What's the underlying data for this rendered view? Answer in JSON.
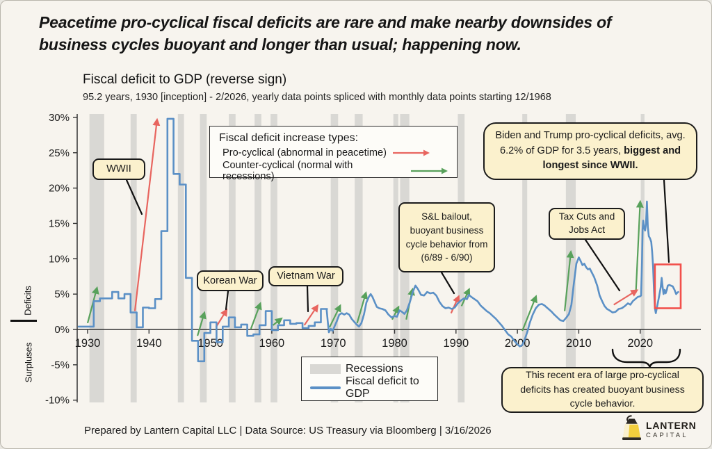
{
  "header": {
    "title": "Peacetime pro-cyclical fiscal deficits are rare and make nearby downsides of business cycles buoyant and longer than usual; happening now."
  },
  "chart": {
    "title": "Fiscal deficit to GDP (reverse sign)",
    "subtitle": "95.2 years, 1930 [inception] - 2/2026, yearly data points spliced with monthly data points starting 12/1968"
  },
  "types_legend": {
    "title": "Fiscal deficit increase types:",
    "items": [
      {
        "label": "Pro-cyclical (abnormal in peacetime)",
        "type": "pro"
      },
      {
        "label": "Counter-cyclical (normal with recessions)",
        "type": "counter"
      }
    ]
  },
  "callouts": {
    "wwii": "WWII",
    "korean": "Korean War",
    "vietnam": "Vietnam War",
    "snl": "S&L bailout, buoyant business cycle behavior from (6/89 - 6/90)",
    "taxcuts": "Tax Cuts and Jobs Act",
    "biden_trump_text": "Biden and Trump pro-cyclical deficits, avg. 6.2% of GDP for 3.5 years, ",
    "biden_trump_bold": "biggest and longest since WWII.",
    "recent_era": "This recent era of large pro-cyclical deficits has created buoyant business cycle behavior."
  },
  "axis_labels": {
    "deficits": "Deficits",
    "surpluses": "Surpluses"
  },
  "legend": {
    "recessions": "Recessions",
    "line": "Fiscal deficit to GDP"
  },
  "footer": {
    "text": "Prepared by Lantern Capital LLC | Data Source: US Treasury via Bloomberg | 3/16/2026"
  },
  "logo": {
    "name": "LANTERN",
    "sub": "CAPITAL"
  },
  "colors": {
    "background": "#f7f4ee",
    "line": "#5b90c6",
    "recession": "#d9d8d4",
    "pro": "#e8655f",
    "counter": "#58a15b",
    "callout_bg": "#fbf1cd",
    "highlight_box": "#f2504b",
    "text": "#1a1a1a"
  },
  "chart_data": {
    "type": "line",
    "title": "Fiscal deficit to GDP (reverse sign)",
    "xlabel": "",
    "ylabel": "Deficits / Surpluses (% of GDP, reverse sign)",
    "xlim": [
      1928.3,
      2029.5
    ],
    "ylim": [
      -10.5,
      30.5
    ],
    "grid": false,
    "y_ticks": [
      30,
      25,
      20,
      15,
      10,
      5,
      0,
      -5,
      -10
    ],
    "y_tick_suffix": "%",
    "x_ticks": [
      1930,
      1940,
      1950,
      1960,
      1970,
      1980,
      1990,
      2000,
      2010,
      2020
    ],
    "series": [
      {
        "name": "Fiscal deficit to GDP",
        "yearly_step": [
          [
            1930,
            0.4
          ],
          [
            1931,
            4.0
          ],
          [
            1932,
            4.4
          ],
          [
            1933,
            4.4
          ],
          [
            1934,
            5.3
          ],
          [
            1935,
            4.4
          ],
          [
            1936,
            5.0
          ],
          [
            1937,
            2.4
          ],
          [
            1938,
            0.3
          ],
          [
            1939,
            3.1
          ],
          [
            1940,
            3.0
          ],
          [
            1941,
            4.3
          ],
          [
            1942,
            13.9
          ],
          [
            1943,
            29.8
          ],
          [
            1944,
            22.0
          ],
          [
            1945,
            20.5
          ],
          [
            1946,
            7.3
          ],
          [
            1947,
            -1.6
          ],
          [
            1948,
            -4.5
          ],
          [
            1949,
            -0.5
          ],
          [
            1950,
            1.0
          ],
          [
            1951,
            -1.8
          ],
          [
            1952,
            0.4
          ],
          [
            1953,
            1.7
          ],
          [
            1954,
            0.3
          ],
          [
            1955,
            0.7
          ],
          [
            1956,
            -0.9
          ],
          [
            1957,
            -0.7
          ],
          [
            1958,
            0.6
          ],
          [
            1959,
            2.6
          ],
          [
            1960,
            -0.1
          ],
          [
            1961,
            0.6
          ],
          [
            1962,
            1.3
          ],
          [
            1963,
            0.8
          ],
          [
            1964,
            0.9
          ],
          [
            1965,
            0.2
          ],
          [
            1966,
            0.5
          ],
          [
            1967,
            1.0
          ],
          [
            1968,
            2.9
          ]
        ],
        "monthly": [
          [
            1968.92,
            2.9
          ],
          [
            1969.1,
            1.2
          ],
          [
            1969.3,
            -0.4
          ],
          [
            1969.6,
            0.1
          ],
          [
            1969.9,
            -0.2
          ],
          [
            1970.2,
            0.4
          ],
          [
            1970.6,
            1.2
          ],
          [
            1971.0,
            2.1
          ],
          [
            1971.4,
            2.3
          ],
          [
            1971.8,
            2.1
          ],
          [
            1972.2,
            2.3
          ],
          [
            1972.6,
            2.1
          ],
          [
            1973.0,
            1.5
          ],
          [
            1973.4,
            1.1
          ],
          [
            1973.8,
            0.7
          ],
          [
            1974.2,
            0.4
          ],
          [
            1974.6,
            0.9
          ],
          [
            1975.0,
            2.1
          ],
          [
            1975.4,
            3.8
          ],
          [
            1975.8,
            4.6
          ],
          [
            1976.1,
            5.0
          ],
          [
            1976.4,
            4.6
          ],
          [
            1976.8,
            3.8
          ],
          [
            1977.1,
            3.2
          ],
          [
            1977.5,
            3.0
          ],
          [
            1978.0,
            2.9
          ],
          [
            1978.5,
            2.7
          ],
          [
            1979.0,
            2.1
          ],
          [
            1979.5,
            1.7
          ],
          [
            1980.0,
            1.9
          ],
          [
            1980.4,
            1.8
          ],
          [
            1980.8,
            2.7
          ],
          [
            1981.2,
            2.5
          ],
          [
            1981.6,
            2.2
          ],
          [
            1982.0,
            2.7
          ],
          [
            1982.5,
            3.9
          ],
          [
            1983.0,
            5.4
          ],
          [
            1983.4,
            6.2
          ],
          [
            1983.8,
            5.7
          ],
          [
            1984.3,
            4.9
          ],
          [
            1984.8,
            4.8
          ],
          [
            1985.3,
            5.3
          ],
          [
            1985.8,
            5.1
          ],
          [
            1986.3,
            5.2
          ],
          [
            1986.8,
            4.8
          ],
          [
            1987.3,
            3.9
          ],
          [
            1987.8,
            3.3
          ],
          [
            1988.3,
            3.0
          ],
          [
            1988.8,
            3.1
          ],
          [
            1989.3,
            2.9
          ],
          [
            1989.8,
            3.1
          ],
          [
            1990.3,
            3.7
          ],
          [
            1990.8,
            4.1
          ],
          [
            1991.3,
            4.4
          ],
          [
            1991.8,
            4.3
          ],
          [
            1992.1,
            4.9
          ],
          [
            1992.5,
            4.6
          ],
          [
            1993.0,
            4.3
          ],
          [
            1993.5,
            4.0
          ],
          [
            1994.0,
            3.4
          ],
          [
            1994.5,
            3.0
          ],
          [
            1995.0,
            2.6
          ],
          [
            1995.5,
            2.3
          ],
          [
            1996.0,
            1.9
          ],
          [
            1996.5,
            1.5
          ],
          [
            1997.0,
            1.0
          ],
          [
            1997.5,
            0.5
          ],
          [
            1998.0,
            -0.1
          ],
          [
            1998.5,
            -0.7
          ],
          [
            1999.0,
            -1.0
          ],
          [
            1999.5,
            -1.6
          ],
          [
            2000.0,
            -2.1
          ],
          [
            2000.4,
            -2.4
          ],
          [
            2000.8,
            -2.2
          ],
          [
            2001.2,
            -1.4
          ],
          [
            2001.6,
            -0.4
          ],
          [
            2002.0,
            0.9
          ],
          [
            2002.5,
            2.1
          ],
          [
            2003.0,
            3.0
          ],
          [
            2003.5,
            3.5
          ],
          [
            2004.0,
            3.6
          ],
          [
            2004.4,
            3.4
          ],
          [
            2004.8,
            3.1
          ],
          [
            2005.2,
            2.8
          ],
          [
            2005.6,
            2.5
          ],
          [
            2006.0,
            2.1
          ],
          [
            2006.5,
            1.7
          ],
          [
            2007.0,
            1.3
          ],
          [
            2007.5,
            1.2
          ],
          [
            2008.0,
            1.7
          ],
          [
            2008.4,
            2.2
          ],
          [
            2008.8,
            3.5
          ],
          [
            2009.2,
            6.5
          ],
          [
            2009.6,
            9.3
          ],
          [
            2010.0,
            10.2
          ],
          [
            2010.3,
            9.7
          ],
          [
            2010.6,
            9.1
          ],
          [
            2010.9,
            9.3
          ],
          [
            2011.2,
            8.8
          ],
          [
            2011.5,
            8.5
          ],
          [
            2011.8,
            8.6
          ],
          [
            2012.1,
            8.1
          ],
          [
            2012.5,
            7.4
          ],
          [
            2013.0,
            6.2
          ],
          [
            2013.4,
            4.8
          ],
          [
            2013.8,
            4.0
          ],
          [
            2014.2,
            3.3
          ],
          [
            2014.6,
            2.9
          ],
          [
            2015.0,
            2.7
          ],
          [
            2015.5,
            2.4
          ],
          [
            2016.0,
            2.5
          ],
          [
            2016.5,
            2.9
          ],
          [
            2017.0,
            3.0
          ],
          [
            2017.5,
            3.3
          ],
          [
            2018.0,
            3.7
          ],
          [
            2018.4,
            3.5
          ],
          [
            2018.8,
            4.0
          ],
          [
            2019.2,
            4.3
          ],
          [
            2019.6,
            4.6
          ],
          [
            2020.0,
            4.7
          ],
          [
            2020.15,
            4.8
          ],
          [
            2020.3,
            9.5
          ],
          [
            2020.4,
            14.2
          ],
          [
            2020.5,
            15.4
          ],
          [
            2020.65,
            14.3
          ],
          [
            2020.8,
            14.0
          ],
          [
            2020.95,
            15.0
          ],
          [
            2021.1,
            18.1
          ],
          [
            2021.25,
            14.5
          ],
          [
            2021.4,
            13.2
          ],
          [
            2021.6,
            12.9
          ],
          [
            2021.8,
            12.4
          ],
          [
            2021.95,
            11.0
          ],
          [
            2022.1,
            9.0
          ],
          [
            2022.25,
            5.5
          ],
          [
            2022.4,
            3.0
          ],
          [
            2022.55,
            2.3
          ],
          [
            2022.8,
            3.4
          ],
          [
            2023.1,
            4.8
          ],
          [
            2023.35,
            6.0
          ],
          [
            2023.5,
            7.3
          ],
          [
            2023.65,
            6.1
          ],
          [
            2023.8,
            5.0
          ],
          [
            2024.0,
            5.6
          ],
          [
            2024.15,
            5.1
          ],
          [
            2024.35,
            5.6
          ],
          [
            2024.5,
            6.2
          ],
          [
            2024.75,
            6.3
          ],
          [
            2025.0,
            6.2
          ],
          [
            2025.3,
            6.1
          ],
          [
            2025.6,
            5.6
          ],
          [
            2025.85,
            5.0
          ],
          [
            2026.05,
            5.2
          ],
          [
            2026.2,
            5.3
          ]
        ]
      }
    ],
    "recessions": [
      [
        1930.3,
        1932.7
      ],
      [
        1937.0,
        1938.0
      ],
      [
        1944.7,
        1945.7
      ],
      [
        1948.3,
        1949.4
      ],
      [
        1953.0,
        1954.1
      ],
      [
        1957.2,
        1958.3
      ],
      [
        1959.8,
        1960.9
      ],
      [
        1969.6,
        1970.8
      ],
      [
        1973.5,
        1974.8
      ],
      [
        1979.8,
        1980.6
      ],
      [
        1980.9,
        1982.4
      ],
      [
        1990.3,
        1991.4
      ],
      [
        2000.8,
        2001.6
      ],
      [
        2007.9,
        2009.5
      ],
      [
        2020.1,
        2020.7
      ]
    ],
    "arrows": [
      {
        "type": "counter",
        "from": [
          1930.0,
          0.9
        ],
        "to": [
          1931.5,
          5.8
        ]
      },
      {
        "type": "counter",
        "from": [
          1947.9,
          -0.9
        ],
        "to": [
          1949.0,
          2.3
        ]
      },
      {
        "type": "counter",
        "from": [
          1956.6,
          0.1
        ],
        "to": [
          1958.1,
          3.6
        ]
      },
      {
        "type": "counter",
        "from": [
          1960.2,
          0.6
        ],
        "to": [
          1961.5,
          1.5
        ]
      },
      {
        "type": "counter",
        "from": [
          1969.4,
          0.3
        ],
        "to": [
          1971.1,
          3.3
        ]
      },
      {
        "type": "counter",
        "from": [
          1973.9,
          0.9
        ],
        "to": [
          1975.3,
          5.1
        ]
      },
      {
        "type": "counter",
        "from": [
          1979.6,
          1.4
        ],
        "to": [
          1980.6,
          3.1
        ]
      },
      {
        "type": "counter",
        "from": [
          1981.9,
          1.4
        ],
        "to": [
          1982.9,
          5.6
        ]
      },
      {
        "type": "counter",
        "from": [
          1990.9,
          3.3
        ],
        "to": [
          1992.1,
          5.6
        ]
      },
      {
        "type": "counter",
        "from": [
          2000.8,
          -0.2
        ],
        "to": [
          2003.0,
          4.6
        ]
      },
      {
        "type": "counter",
        "from": [
          2007.7,
          2.6
        ],
        "to": [
          2008.7,
          10.9
        ]
      },
      {
        "type": "counter",
        "from": [
          2019.3,
          5.2
        ],
        "to": [
          2020.0,
          18.0
        ]
      },
      {
        "type": "pro",
        "from": [
          1937.7,
          2.6
        ],
        "to": [
          1941.3,
          29.6
        ]
      },
      {
        "type": "pro",
        "from": [
          1950.9,
          0.3
        ],
        "to": [
          1952.6,
          2.7
        ]
      },
      {
        "type": "pro",
        "from": [
          1965.3,
          0.6
        ],
        "to": [
          1967.4,
          3.3
        ]
      },
      {
        "type": "pro",
        "from": [
          1989.2,
          2.3
        ],
        "to": [
          1990.4,
          4.6
        ]
      },
      {
        "type": "pro",
        "from": [
          2015.7,
          3.5
        ],
        "to": [
          2019.4,
          5.5
        ]
      }
    ],
    "highlight_box": {
      "x": [
        2022.4,
        2026.6
      ],
      "y": [
        3.0,
        9.2
      ]
    }
  }
}
